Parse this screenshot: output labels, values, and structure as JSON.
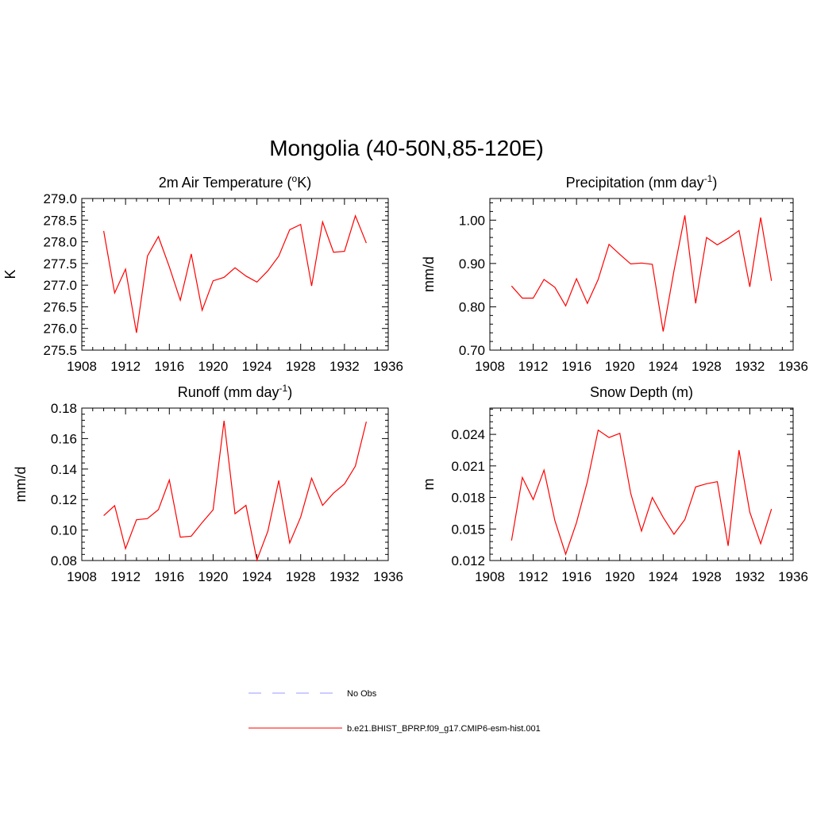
{
  "figure": {
    "title": "Mongolia (40-50N,85-120E)"
  },
  "legend": {
    "position": "bottom-center",
    "entries": [
      {
        "label": "No Obs",
        "color": "#9999ff",
        "style": "dashed"
      },
      {
        "label": "b.e21.BHIST_BPRP.f09_g17.CMIP6-esm-hist.001",
        "color": "#ff0000",
        "style": "solid"
      }
    ]
  },
  "chart_data": [
    {
      "type": "line",
      "title": "2m Air Temperature (°K)",
      "title_main": "2m Air Temperature (",
      "title_sup": "o",
      "title_tail": "K)",
      "ylabel": "K",
      "xlim": [
        1908,
        1936
      ],
      "ylim": [
        275.5,
        279.0
      ],
      "xticks": [
        1908,
        1912,
        1916,
        1920,
        1924,
        1928,
        1932,
        1936
      ],
      "xtick_labels": [
        "1908",
        "1912",
        "1916",
        "1920",
        "1924",
        "1928",
        "1932",
        "1936"
      ],
      "yticks": [
        275.5,
        276.0,
        276.5,
        277.0,
        277.5,
        278.0,
        278.5,
        279.0
      ],
      "ytick_labels": [
        "275.5",
        "276.0",
        "276.5",
        "277.0",
        "277.5",
        "278.0",
        "278.5",
        "279.0"
      ],
      "x": [
        1910,
        1911,
        1912,
        1913,
        1914,
        1915,
        1916,
        1917,
        1918,
        1919,
        1920,
        1921,
        1922,
        1923,
        1924,
        1925,
        1926,
        1927,
        1928,
        1929,
        1930,
        1931,
        1932,
        1933,
        1934
      ],
      "series": [
        {
          "color": "#ff0000",
          "values": [
            278.25,
            276.82,
            277.37,
            275.9,
            277.67,
            278.12,
            277.42,
            276.65,
            277.72,
            276.42,
            277.1,
            277.18,
            277.4,
            277.21,
            277.07,
            277.33,
            277.67,
            278.28,
            278.4,
            276.98,
            278.46,
            277.76,
            277.78,
            278.6,
            277.97
          ]
        }
      ]
    },
    {
      "type": "line",
      "title": "Precipitation (mm day-1)",
      "title_main": "Precipitation (mm day",
      "title_sup": "-1",
      "title_tail": ")",
      "ylabel": "mm/d",
      "xlim": [
        1908,
        1936
      ],
      "ylim": [
        0.7,
        1.05
      ],
      "xticks": [
        1908,
        1912,
        1916,
        1920,
        1924,
        1928,
        1932,
        1936
      ],
      "xtick_labels": [
        "1908",
        "1912",
        "1916",
        "1920",
        "1924",
        "1928",
        "1932",
        "1936"
      ],
      "yticks": [
        0.7,
        0.8,
        0.9,
        1.0
      ],
      "ytick_labels": [
        "0.70",
        "0.80",
        "0.90",
        "1.00"
      ],
      "x": [
        1910,
        1911,
        1912,
        1913,
        1914,
        1915,
        1916,
        1917,
        1918,
        1919,
        1920,
        1921,
        1922,
        1923,
        1924,
        1925,
        1926,
        1927,
        1928,
        1929,
        1930,
        1931,
        1932,
        1933,
        1934
      ],
      "series": [
        {
          "color": "#ff0000",
          "values": [
            0.848,
            0.82,
            0.82,
            0.863,
            0.845,
            0.802,
            0.865,
            0.808,
            0.863,
            0.944,
            0.921,
            0.899,
            0.901,
            0.898,
            0.743,
            0.883,
            1.011,
            0.808,
            0.96,
            0.943,
            0.958,
            0.976,
            0.846,
            1.006,
            0.86
          ]
        }
      ]
    },
    {
      "type": "line",
      "title": "Runoff (mm day-1)",
      "title_main": "Runoff (mm day",
      "title_sup": "-1",
      "title_tail": ")",
      "ylabel": "mm/d",
      "xlim": [
        1908,
        1936
      ],
      "ylim": [
        0.08,
        0.18
      ],
      "xticks": [
        1908,
        1912,
        1916,
        1920,
        1924,
        1928,
        1932,
        1936
      ],
      "xtick_labels": [
        "1908",
        "1912",
        "1916",
        "1920",
        "1924",
        "1928",
        "1932",
        "1936"
      ],
      "yticks": [
        0.08,
        0.1,
        0.12,
        0.14,
        0.16,
        0.18
      ],
      "ytick_labels": [
        "0.08",
        "0.10",
        "0.12",
        "0.14",
        "0.16",
        "0.18"
      ],
      "x": [
        1910,
        1911,
        1912,
        1913,
        1914,
        1915,
        1916,
        1917,
        1918,
        1919,
        1920,
        1921,
        1922,
        1923,
        1924,
        1925,
        1926,
        1927,
        1928,
        1929,
        1930,
        1931,
        1932,
        1933,
        1934
      ],
      "series": [
        {
          "color": "#ff0000",
          "values": [
            0.1095,
            0.116,
            0.0878,
            0.1067,
            0.1075,
            0.1134,
            0.1328,
            0.0953,
            0.096,
            0.1049,
            0.1133,
            0.1717,
            0.1107,
            0.1162,
            0.0803,
            0.0993,
            0.1325,
            0.0915,
            0.1085,
            0.134,
            0.1162,
            0.1242,
            0.1302,
            0.142,
            0.1711
          ]
        }
      ]
    },
    {
      "type": "line",
      "title": "Snow Depth (m)",
      "title_main": "Snow Depth (m)",
      "title_sup": "",
      "title_tail": "",
      "ylabel": "m",
      "xlim": [
        1908,
        1936
      ],
      "ylim": [
        0.012,
        0.0265
      ],
      "xticks": [
        1908,
        1912,
        1916,
        1920,
        1924,
        1928,
        1932,
        1936
      ],
      "xtick_labels": [
        "1908",
        "1912",
        "1916",
        "1920",
        "1924",
        "1928",
        "1932",
        "1936"
      ],
      "yticks": [
        0.012,
        0.015,
        0.018,
        0.021,
        0.024
      ],
      "ytick_labels": [
        "0.012",
        "0.015",
        "0.018",
        "0.021",
        "0.024"
      ],
      "x": [
        1910,
        1911,
        1912,
        1913,
        1914,
        1915,
        1916,
        1917,
        1918,
        1919,
        1920,
        1921,
        1922,
        1923,
        1924,
        1925,
        1926,
        1927,
        1928,
        1929,
        1930,
        1931,
        1932,
        1933,
        1934
      ],
      "series": [
        {
          "color": "#ff0000",
          "values": [
            0.0139,
            0.0199,
            0.0178,
            0.0206,
            0.0158,
            0.0126,
            0.0156,
            0.0195,
            0.0244,
            0.0237,
            0.0241,
            0.0184,
            0.0148,
            0.018,
            0.0161,
            0.0145,
            0.0159,
            0.019,
            0.0193,
            0.0195,
            0.0134,
            0.0225,
            0.0166,
            0.0136,
            0.0169
          ]
        }
      ]
    }
  ]
}
